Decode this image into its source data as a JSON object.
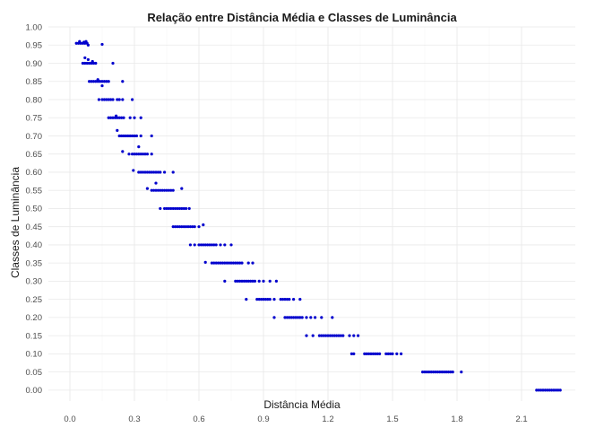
{
  "chart_data": {
    "type": "scatter",
    "title": "Relação entre Distância Média e Classes de Luminância",
    "xlabel": "Distância Média",
    "ylabel": "Classes de Luminância",
    "xlim": [
      -0.1,
      2.35
    ],
    "ylim": [
      -0.03,
      1.0
    ],
    "xticks": [
      0.0,
      0.3,
      0.6,
      0.9,
      1.2,
      1.5,
      1.8,
      2.1
    ],
    "xtick_labels": [
      "0.0",
      "0.3",
      "0.6",
      "0.9",
      "1.2",
      "1.5",
      "1.8",
      "2.1"
    ],
    "yticks": [
      0.0,
      0.05,
      0.1,
      0.15,
      0.2,
      0.25,
      0.3,
      0.35,
      0.4,
      0.45,
      0.5,
      0.55,
      0.6,
      0.65,
      0.7,
      0.75,
      0.8,
      0.85,
      0.9,
      0.95,
      1.0
    ],
    "ytick_labels": [
      "0.00",
      "0.05",
      "0.10",
      "0.15",
      "0.20",
      "0.25",
      "0.30",
      "0.35",
      "0.40",
      "0.45",
      "0.50",
      "0.55",
      "0.60",
      "0.65",
      "0.70",
      "0.75",
      "0.80",
      "0.85",
      "0.90",
      "0.95",
      "1.00"
    ],
    "grid": true,
    "point_color": "#0000cd",
    "series": [
      {
        "points": [
          [
            0.03,
            0.955
          ],
          [
            0.04,
            0.955
          ],
          [
            0.05,
            0.955
          ],
          [
            0.06,
            0.955
          ],
          [
            0.07,
            0.955
          ],
          [
            0.08,
            0.955
          ],
          [
            0.045,
            0.96
          ],
          [
            0.065,
            0.958
          ],
          [
            0.15,
            0.952
          ],
          [
            0.085,
            0.95
          ],
          [
            0.075,
            0.96
          ],
          [
            0.06,
            0.9
          ],
          [
            0.07,
            0.9
          ],
          [
            0.08,
            0.9
          ],
          [
            0.09,
            0.9
          ],
          [
            0.1,
            0.9
          ],
          [
            0.11,
            0.9
          ],
          [
            0.12,
            0.9
          ],
          [
            0.07,
            0.915
          ],
          [
            0.085,
            0.91
          ],
          [
            0.105,
            0.905
          ],
          [
            0.2,
            0.9
          ],
          [
            0.09,
            0.85
          ],
          [
            0.1,
            0.85
          ],
          [
            0.11,
            0.85
          ],
          [
            0.12,
            0.85
          ],
          [
            0.13,
            0.85
          ],
          [
            0.14,
            0.85
          ],
          [
            0.15,
            0.85
          ],
          [
            0.16,
            0.85
          ],
          [
            0.17,
            0.85
          ],
          [
            0.18,
            0.85
          ],
          [
            0.13,
            0.855
          ],
          [
            0.15,
            0.838
          ],
          [
            0.245,
            0.85
          ],
          [
            0.135,
            0.8
          ],
          [
            0.15,
            0.8
          ],
          [
            0.16,
            0.8
          ],
          [
            0.17,
            0.8
          ],
          [
            0.18,
            0.8
          ],
          [
            0.19,
            0.8
          ],
          [
            0.2,
            0.8
          ],
          [
            0.22,
            0.8
          ],
          [
            0.23,
            0.8
          ],
          [
            0.245,
            0.8
          ],
          [
            0.29,
            0.8
          ],
          [
            0.18,
            0.75
          ],
          [
            0.19,
            0.75
          ],
          [
            0.2,
            0.75
          ],
          [
            0.21,
            0.75
          ],
          [
            0.22,
            0.75
          ],
          [
            0.23,
            0.75
          ],
          [
            0.24,
            0.75
          ],
          [
            0.25,
            0.75
          ],
          [
            0.28,
            0.75
          ],
          [
            0.3,
            0.75
          ],
          [
            0.33,
            0.75
          ],
          [
            0.215,
            0.755
          ],
          [
            0.22,
            0.715
          ],
          [
            0.23,
            0.7
          ],
          [
            0.24,
            0.7
          ],
          [
            0.25,
            0.7
          ],
          [
            0.26,
            0.7
          ],
          [
            0.27,
            0.7
          ],
          [
            0.28,
            0.7
          ],
          [
            0.29,
            0.7
          ],
          [
            0.3,
            0.7
          ],
          [
            0.31,
            0.7
          ],
          [
            0.33,
            0.7
          ],
          [
            0.38,
            0.7
          ],
          [
            0.245,
            0.657
          ],
          [
            0.275,
            0.65
          ],
          [
            0.29,
            0.65
          ],
          [
            0.3,
            0.65
          ],
          [
            0.31,
            0.65
          ],
          [
            0.32,
            0.65
          ],
          [
            0.33,
            0.65
          ],
          [
            0.34,
            0.65
          ],
          [
            0.35,
            0.65
          ],
          [
            0.36,
            0.65
          ],
          [
            0.38,
            0.65
          ],
          [
            0.32,
            0.67
          ],
          [
            0.295,
            0.605
          ],
          [
            0.32,
            0.6
          ],
          [
            0.33,
            0.6
          ],
          [
            0.34,
            0.6
          ],
          [
            0.35,
            0.6
          ],
          [
            0.36,
            0.6
          ],
          [
            0.37,
            0.6
          ],
          [
            0.38,
            0.6
          ],
          [
            0.39,
            0.6
          ],
          [
            0.4,
            0.6
          ],
          [
            0.41,
            0.6
          ],
          [
            0.42,
            0.6
          ],
          [
            0.44,
            0.6
          ],
          [
            0.48,
            0.6
          ],
          [
            0.36,
            0.555
          ],
          [
            0.38,
            0.55
          ],
          [
            0.39,
            0.55
          ],
          [
            0.4,
            0.55
          ],
          [
            0.41,
            0.55
          ],
          [
            0.42,
            0.55
          ],
          [
            0.43,
            0.55
          ],
          [
            0.44,
            0.55
          ],
          [
            0.45,
            0.55
          ],
          [
            0.46,
            0.55
          ],
          [
            0.47,
            0.55
          ],
          [
            0.48,
            0.55
          ],
          [
            0.52,
            0.555
          ],
          [
            0.4,
            0.57
          ],
          [
            0.42,
            0.5
          ],
          [
            0.44,
            0.5
          ],
          [
            0.45,
            0.5
          ],
          [
            0.46,
            0.5
          ],
          [
            0.47,
            0.5
          ],
          [
            0.48,
            0.5
          ],
          [
            0.49,
            0.5
          ],
          [
            0.5,
            0.5
          ],
          [
            0.51,
            0.5
          ],
          [
            0.52,
            0.5
          ],
          [
            0.53,
            0.5
          ],
          [
            0.54,
            0.5
          ],
          [
            0.555,
            0.5
          ],
          [
            0.48,
            0.45
          ],
          [
            0.49,
            0.45
          ],
          [
            0.5,
            0.45
          ],
          [
            0.51,
            0.45
          ],
          [
            0.52,
            0.45
          ],
          [
            0.53,
            0.45
          ],
          [
            0.54,
            0.45
          ],
          [
            0.55,
            0.45
          ],
          [
            0.56,
            0.45
          ],
          [
            0.57,
            0.45
          ],
          [
            0.58,
            0.45
          ],
          [
            0.6,
            0.45
          ],
          [
            0.62,
            0.455
          ],
          [
            0.56,
            0.4
          ],
          [
            0.58,
            0.4
          ],
          [
            0.6,
            0.4
          ],
          [
            0.61,
            0.4
          ],
          [
            0.62,
            0.4
          ],
          [
            0.63,
            0.4
          ],
          [
            0.64,
            0.4
          ],
          [
            0.65,
            0.4
          ],
          [
            0.66,
            0.4
          ],
          [
            0.67,
            0.4
          ],
          [
            0.68,
            0.4
          ],
          [
            0.7,
            0.4
          ],
          [
            0.72,
            0.4
          ],
          [
            0.75,
            0.4
          ],
          [
            0.63,
            0.352
          ],
          [
            0.66,
            0.35
          ],
          [
            0.67,
            0.35
          ],
          [
            0.68,
            0.35
          ],
          [
            0.69,
            0.35
          ],
          [
            0.7,
            0.35
          ],
          [
            0.71,
            0.35
          ],
          [
            0.72,
            0.35
          ],
          [
            0.73,
            0.35
          ],
          [
            0.74,
            0.35
          ],
          [
            0.75,
            0.35
          ],
          [
            0.76,
            0.35
          ],
          [
            0.77,
            0.35
          ],
          [
            0.78,
            0.35
          ],
          [
            0.79,
            0.35
          ],
          [
            0.8,
            0.35
          ],
          [
            0.83,
            0.35
          ],
          [
            0.85,
            0.35
          ],
          [
            0.72,
            0.3
          ],
          [
            0.77,
            0.3
          ],
          [
            0.78,
            0.3
          ],
          [
            0.79,
            0.3
          ],
          [
            0.8,
            0.3
          ],
          [
            0.81,
            0.3
          ],
          [
            0.82,
            0.3
          ],
          [
            0.83,
            0.3
          ],
          [
            0.84,
            0.3
          ],
          [
            0.85,
            0.3
          ],
          [
            0.86,
            0.3
          ],
          [
            0.88,
            0.3
          ],
          [
            0.9,
            0.3
          ],
          [
            0.93,
            0.3
          ],
          [
            0.96,
            0.3
          ],
          [
            0.82,
            0.25
          ],
          [
            0.87,
            0.25
          ],
          [
            0.88,
            0.25
          ],
          [
            0.89,
            0.25
          ],
          [
            0.9,
            0.25
          ],
          [
            0.91,
            0.25
          ],
          [
            0.92,
            0.25
          ],
          [
            0.93,
            0.25
          ],
          [
            0.95,
            0.25
          ],
          [
            0.98,
            0.25
          ],
          [
            0.99,
            0.25
          ],
          [
            1.0,
            0.25
          ],
          [
            1.01,
            0.25
          ],
          [
            1.02,
            0.25
          ],
          [
            1.04,
            0.25
          ],
          [
            1.07,
            0.25
          ],
          [
            0.95,
            0.2
          ],
          [
            1.0,
            0.2
          ],
          [
            1.01,
            0.2
          ],
          [
            1.02,
            0.2
          ],
          [
            1.03,
            0.2
          ],
          [
            1.04,
            0.2
          ],
          [
            1.05,
            0.2
          ],
          [
            1.06,
            0.2
          ],
          [
            1.07,
            0.2
          ],
          [
            1.08,
            0.2
          ],
          [
            1.1,
            0.2
          ],
          [
            1.12,
            0.2
          ],
          [
            1.14,
            0.2
          ],
          [
            1.17,
            0.2
          ],
          [
            1.22,
            0.2
          ],
          [
            1.1,
            0.15
          ],
          [
            1.13,
            0.15
          ],
          [
            1.16,
            0.15
          ],
          [
            1.17,
            0.15
          ],
          [
            1.18,
            0.15
          ],
          [
            1.19,
            0.15
          ],
          [
            1.2,
            0.15
          ],
          [
            1.21,
            0.15
          ],
          [
            1.22,
            0.15
          ],
          [
            1.23,
            0.15
          ],
          [
            1.24,
            0.15
          ],
          [
            1.25,
            0.15
          ],
          [
            1.26,
            0.15
          ],
          [
            1.27,
            0.15
          ],
          [
            1.3,
            0.15
          ],
          [
            1.32,
            0.15
          ],
          [
            1.34,
            0.15
          ],
          [
            1.31,
            0.1
          ],
          [
            1.32,
            0.1
          ],
          [
            1.37,
            0.1
          ],
          [
            1.38,
            0.1
          ],
          [
            1.39,
            0.1
          ],
          [
            1.4,
            0.1
          ],
          [
            1.41,
            0.1
          ],
          [
            1.42,
            0.1
          ],
          [
            1.43,
            0.1
          ],
          [
            1.44,
            0.1
          ],
          [
            1.47,
            0.1
          ],
          [
            1.48,
            0.1
          ],
          [
            1.49,
            0.1
          ],
          [
            1.5,
            0.1
          ],
          [
            1.52,
            0.1
          ],
          [
            1.54,
            0.1
          ],
          [
            1.64,
            0.05
          ],
          [
            1.65,
            0.05
          ],
          [
            1.66,
            0.05
          ],
          [
            1.67,
            0.05
          ],
          [
            1.68,
            0.05
          ],
          [
            1.69,
            0.05
          ],
          [
            1.7,
            0.05
          ],
          [
            1.71,
            0.05
          ],
          [
            1.72,
            0.05
          ],
          [
            1.73,
            0.05
          ],
          [
            1.74,
            0.05
          ],
          [
            1.75,
            0.05
          ],
          [
            1.76,
            0.05
          ],
          [
            1.77,
            0.05
          ],
          [
            1.78,
            0.05
          ],
          [
            1.82,
            0.05
          ],
          [
            2.17,
            0.0
          ],
          [
            2.18,
            0.0
          ],
          [
            2.19,
            0.0
          ],
          [
            2.2,
            0.0
          ],
          [
            2.21,
            0.0
          ],
          [
            2.22,
            0.0
          ],
          [
            2.23,
            0.0
          ],
          [
            2.24,
            0.0
          ],
          [
            2.25,
            0.0
          ],
          [
            2.26,
            0.0
          ],
          [
            2.27,
            0.0
          ],
          [
            2.28,
            0.0
          ]
        ]
      }
    ]
  }
}
